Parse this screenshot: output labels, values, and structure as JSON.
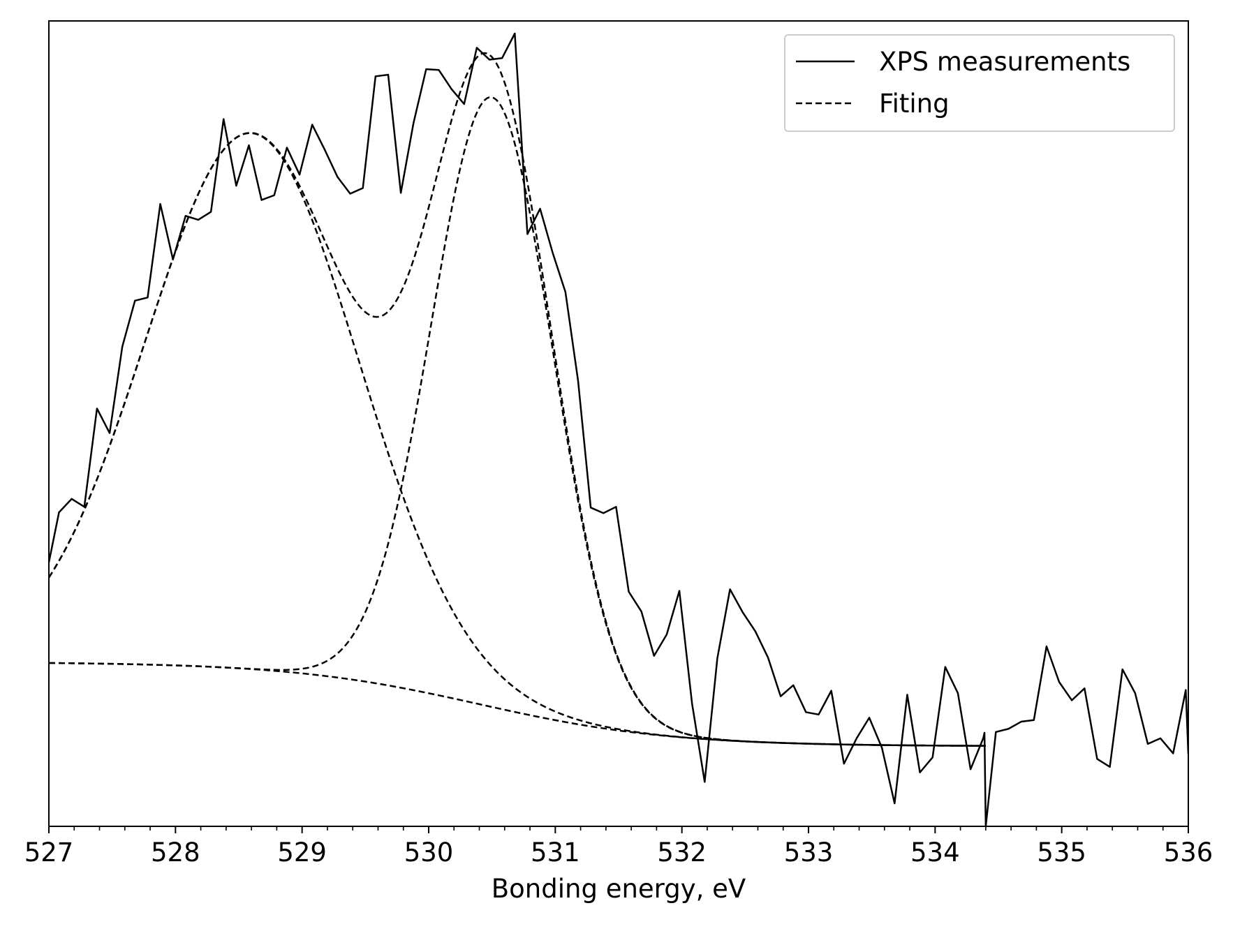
{
  "chart_data": {
    "type": "line",
    "title": "",
    "xlabel": "Bonding energy, eV",
    "ylabel": "",
    "xlim": [
      527,
      536
    ],
    "ylim": [
      0,
      1
    ],
    "x_major_ticks": [
      527,
      528,
      529,
      530,
      531,
      532,
      533,
      534,
      535,
      536
    ],
    "x_tick_labels": [
      "527",
      "528",
      "529",
      "530",
      "531",
      "532",
      "533",
      "534",
      "535",
      "536"
    ],
    "x_minor_step": 0.2,
    "y_ticks_visible": false,
    "grid": false,
    "legend": {
      "position": "top-right",
      "entries": [
        {
          "label": "XPS measurements",
          "style": "solid"
        },
        {
          "label": "Fiting",
          "style": "dashed"
        }
      ]
    },
    "series": [
      {
        "name": "XPS measurements",
        "style": "solid",
        "color": "#000000",
        "x": [
          527.0,
          527.08,
          527.18,
          527.28,
          527.38,
          527.48,
          527.58,
          527.68,
          527.78,
          527.88,
          527.98,
          528.08,
          528.18,
          528.28,
          528.38,
          528.48,
          528.58,
          528.68,
          528.78,
          528.88,
          528.98,
          529.08,
          529.18,
          529.28,
          529.38,
          529.48,
          529.58,
          529.68,
          529.78,
          529.88,
          529.98,
          530.08,
          530.18,
          530.28,
          530.38,
          530.48,
          530.58,
          530.68,
          530.78,
          530.88,
          530.98,
          531.08,
          531.18,
          531.28,
          531.38,
          531.48,
          531.58,
          531.68,
          531.78,
          531.88,
          531.98,
          532.08,
          532.18,
          532.28,
          532.38,
          532.48,
          532.58,
          532.68,
          532.78,
          532.88,
          532.98,
          533.08,
          533.18,
          533.28,
          533.38,
          533.48,
          533.58,
          533.68,
          533.78,
          533.88,
          533.98,
          534.08,
          534.18,
          534.28,
          534.38,
          534.39,
          534.4,
          534.48,
          534.58,
          534.68,
          534.78,
          534.88,
          534.98,
          535.08,
          535.18,
          535.28,
          535.38,
          535.48,
          535.58,
          535.68,
          535.78,
          535.88,
          535.98,
          536.0
        ],
        "y": [
          0.333,
          0.396,
          0.413,
          0.403,
          0.527,
          0.496,
          0.605,
          0.663,
          0.667,
          0.785,
          0.715,
          0.77,
          0.765,
          0.775,
          0.892,
          0.808,
          0.859,
          0.79,
          0.796,
          0.856,
          0.822,
          0.885,
          0.853,
          0.819,
          0.798,
          0.805,
          0.946,
          0.948,
          0.799,
          0.887,
          0.955,
          0.954,
          0.93,
          0.911,
          0.982,
          0.967,
          0.969,
          1.0,
          0.747,
          0.779,
          0.723,
          0.674,
          0.562,
          0.402,
          0.395,
          0.403,
          0.296,
          0.271,
          0.215,
          0.242,
          0.297,
          0.155,
          0.056,
          0.212,
          0.299,
          0.27,
          0.246,
          0.213,
          0.164,
          0.178,
          0.144,
          0.141,
          0.171,
          0.079,
          0.111,
          0.137,
          0.099,
          0.029,
          0.166,
          0.068,
          0.087,
          0.201,
          0.168,
          0.072,
          0.111,
          0.118,
          0.0,
          0.119,
          0.123,
          0.132,
          0.134,
          0.227,
          0.182,
          0.159,
          0.174,
          0.085,
          0.075,
          0.198,
          0.168,
          0.104,
          0.111,
          0.092,
          0.172,
          0.091
        ]
      },
      {
        "name": "Fiting",
        "style": "dashed",
        "color": "#000000",
        "components": [
          "baseline",
          "peak-1",
          "peak-2",
          "envelope"
        ]
      }
    ],
    "fit_model": {
      "baseline": {
        "a": 0.0,
        "b": 0.206,
        "c": 0.2
      },
      "peaks": [
        {
          "amplitude": 0.676,
          "center": 528.6,
          "sigma": 0.835
        },
        {
          "amplitude": 0.769,
          "center": 530.5,
          "sigma": 0.48
        }
      ]
    }
  }
}
